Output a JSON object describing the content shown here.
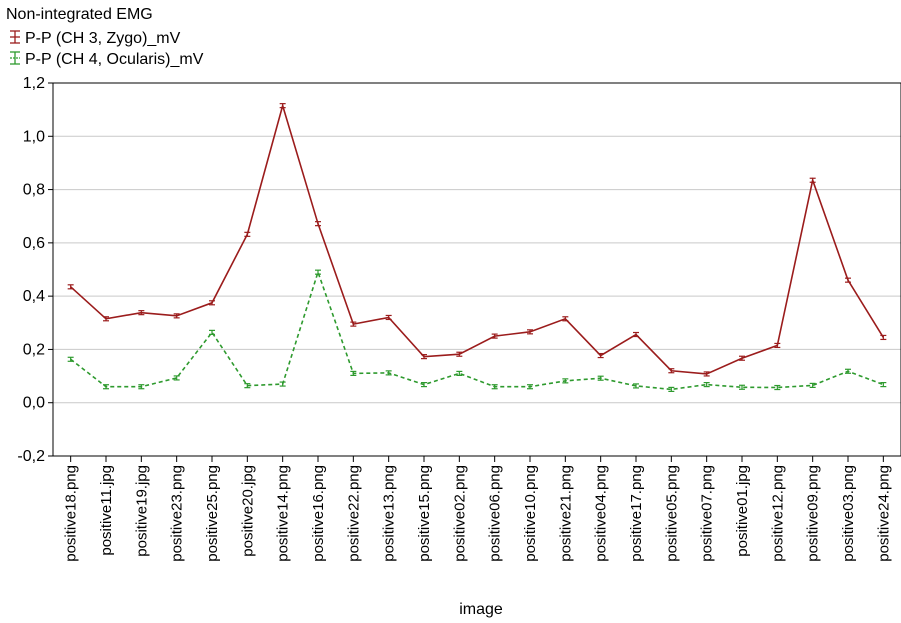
{
  "chart_data": {
    "type": "line",
    "title": "Non-integrated EMG",
    "xlabel": "image",
    "ylabel": "",
    "ylim": [
      -0.2,
      1.2
    ],
    "yticks": [
      "-0,2",
      "0,0",
      "0,2",
      "0,4",
      "0,6",
      "0,8",
      "1,0",
      "1,2"
    ],
    "grid": true,
    "legend_position": "top-left",
    "categories": [
      "positive18.png",
      "positive11.jpg",
      "positive19.jpg",
      "positive23.png",
      "positive25.png",
      "positive20.jpg",
      "positive14.png",
      "positive16.png",
      "positive22.png",
      "positive13.png",
      "positive15.png",
      "positive02.png",
      "positive06.png",
      "positive10.png",
      "positive21.png",
      "positive04.png",
      "positive17.png",
      "positive05.png",
      "positive07.png",
      "positive01.jpg",
      "positive12.png",
      "positive09.png",
      "positive03.png",
      "positive24.png"
    ],
    "series": [
      {
        "name": "P-P (CH 3, Zygo)_mV",
        "color": "#9b1c1c",
        "style": "solid",
        "values": [
          0.435,
          0.315,
          0.338,
          0.326,
          0.375,
          0.632,
          1.115,
          0.672,
          0.295,
          0.32,
          0.173,
          0.182,
          0.25,
          0.266,
          0.315,
          0.177,
          0.256,
          0.12,
          0.108,
          0.167,
          0.215,
          0.835,
          0.46,
          0.245
        ]
      },
      {
        "name": "P-P (CH 4, Ocularis)_mV",
        "color": "#2e9a2e",
        "style": "dashed",
        "values": [
          0.163,
          0.06,
          0.06,
          0.093,
          0.264,
          0.064,
          0.07,
          0.49,
          0.11,
          0.112,
          0.068,
          0.11,
          0.06,
          0.06,
          0.082,
          0.092,
          0.063,
          0.05,
          0.068,
          0.058,
          0.057,
          0.065,
          0.118,
          0.068
        ]
      }
    ]
  }
}
